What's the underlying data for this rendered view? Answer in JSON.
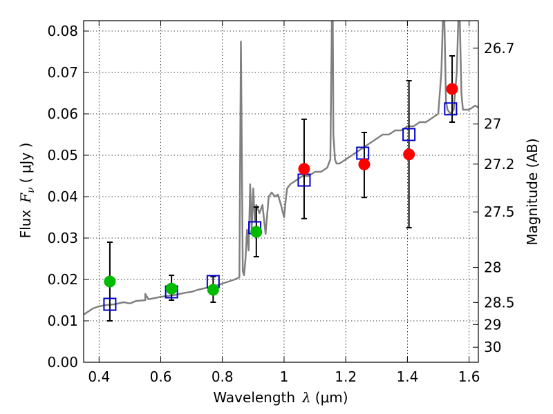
{
  "chart_data": {
    "type": "scatter",
    "title": "",
    "xlabel": {
      "prefix": "Wavelength",
      "symbol": "λ",
      "unit": "(μm)"
    },
    "ylabel": {
      "prefix": "Flux",
      "symbol": "F",
      "subscript": "ν",
      "unit": "( μJy )"
    },
    "y2label": "Magnitude (AB)",
    "xlim": [
      0.35,
      1.63
    ],
    "ylim": [
      0.0,
      0.0825
    ],
    "grid": true,
    "x_ticks": [
      {
        "value": 0.4,
        "label": "0.4"
      },
      {
        "value": 0.6,
        "label": "0.6"
      },
      {
        "value": 0.8,
        "label": "0.8"
      },
      {
        "value": 1.0,
        "label": "1"
      },
      {
        "value": 1.2,
        "label": "1.2"
      },
      {
        "value": 1.4,
        "label": "1.4"
      },
      {
        "value": 1.6,
        "label": "1.6"
      }
    ],
    "y_ticks": [
      {
        "value": 0.0,
        "label": "0.00"
      },
      {
        "value": 0.01,
        "label": "0.01"
      },
      {
        "value": 0.02,
        "label": "0.02"
      },
      {
        "value": 0.03,
        "label": "0.03"
      },
      {
        "value": 0.04,
        "label": "0.04"
      },
      {
        "value": 0.05,
        "label": "0.05"
      },
      {
        "value": 0.06,
        "label": "0.06"
      },
      {
        "value": 0.07,
        "label": "0.07"
      },
      {
        "value": 0.08,
        "label": "0.08"
      }
    ],
    "y2_ticks": [
      {
        "magnitude": 26.7,
        "label": "26.7"
      },
      {
        "magnitude": 27.0,
        "label": "27"
      },
      {
        "magnitude": 27.2,
        "label": "27.2"
      },
      {
        "magnitude": 27.5,
        "label": "27.5"
      },
      {
        "magnitude": 28.0,
        "label": "28"
      },
      {
        "magnitude": 28.5,
        "label": "28.5"
      },
      {
        "magnitude": 29.0,
        "label": "29"
      },
      {
        "magnitude": 30.0,
        "label": "30"
      }
    ],
    "series": [
      {
        "kind": "line",
        "color": "#808080",
        "x": [
          0.35,
          0.38,
          0.4,
          0.42,
          0.45,
          0.48,
          0.5,
          0.52,
          0.55,
          0.55,
          0.56,
          0.58,
          0.6,
          0.62,
          0.65,
          0.68,
          0.7,
          0.72,
          0.75,
          0.78,
          0.8,
          0.82,
          0.84,
          0.855,
          0.86,
          0.862,
          0.866,
          0.87,
          0.875,
          0.88,
          0.885,
          0.89,
          0.895,
          0.9,
          0.905,
          0.91,
          0.92,
          0.93,
          0.94,
          0.95,
          0.96,
          0.97,
          0.98,
          0.99,
          1.0,
          1.005,
          1.01,
          1.02,
          1.04,
          1.06,
          1.08,
          1.1,
          1.12,
          1.14,
          1.15,
          1.155,
          1.158,
          1.16,
          1.165,
          1.17,
          1.18,
          1.2,
          1.22,
          1.24,
          1.26,
          1.28,
          1.3,
          1.32,
          1.34,
          1.36,
          1.38,
          1.4,
          1.42,
          1.44,
          1.46,
          1.48,
          1.5,
          1.51,
          1.515,
          1.52,
          1.525,
          1.53,
          1.54,
          1.55,
          1.56,
          1.565,
          1.57,
          1.575,
          1.58,
          1.6,
          1.62,
          1.63
        ],
        "y": [
          0.0115,
          0.013,
          0.0135,
          0.0138,
          0.014,
          0.0145,
          0.0142,
          0.0148,
          0.015,
          0.0165,
          0.0152,
          0.0155,
          0.0158,
          0.016,
          0.0163,
          0.0168,
          0.017,
          0.0175,
          0.018,
          0.0185,
          0.019,
          0.0195,
          0.02,
          0.0205,
          0.0775,
          0.06,
          0.022,
          0.021,
          0.025,
          0.032,
          0.027,
          0.043,
          0.032,
          0.042,
          0.034,
          0.038,
          0.036,
          0.038,
          0.031,
          0.04,
          0.041,
          0.04,
          0.0405,
          0.038,
          0.035,
          0.039,
          0.042,
          0.043,
          0.044,
          0.045,
          0.045,
          0.046,
          0.046,
          0.047,
          0.049,
          0.0825,
          0.0825,
          0.055,
          0.049,
          0.048,
          0.048,
          0.049,
          0.05,
          0.051,
          0.052,
          0.053,
          0.054,
          0.055,
          0.055,
          0.056,
          0.056,
          0.057,
          0.057,
          0.058,
          0.058,
          0.059,
          0.06,
          0.07,
          0.0825,
          0.0825,
          0.063,
          0.061,
          0.06,
          0.061,
          0.07,
          0.0825,
          0.0825,
          0.065,
          0.061,
          0.061,
          0.062,
          0.0615
        ]
      },
      {
        "kind": "model",
        "marker": "open-square",
        "color": "#0000cc",
        "x": [
          0.435,
          0.635,
          0.77,
          0.905,
          1.065,
          1.255,
          1.405,
          1.54
        ],
        "y": [
          0.014,
          0.017,
          0.0195,
          0.0325,
          0.044,
          0.0505,
          0.055,
          0.0612
        ]
      },
      {
        "kind": "observed",
        "marker": "filled-circle",
        "x": [
          0.435,
          0.635,
          0.77,
          0.91,
          1.065,
          1.26,
          1.405,
          1.545
        ],
        "y": [
          0.0195,
          0.0178,
          0.0175,
          0.0315,
          0.0467,
          0.0478,
          0.0502,
          0.066
        ],
        "yerr_low": [
          0.0095,
          0.0028,
          0.003,
          0.006,
          0.012,
          0.008,
          0.0177,
          0.008
        ],
        "yerr_high": [
          0.0095,
          0.0032,
          0.0032,
          0.006,
          0.012,
          0.0077,
          0.0178,
          0.008
        ],
        "colors": [
          "#00bb00",
          "#00bb00",
          "#00bb00",
          "#00bb00",
          "#ff0000",
          "#ff0000",
          "#ff0000",
          "#ff0000"
        ]
      }
    ]
  }
}
